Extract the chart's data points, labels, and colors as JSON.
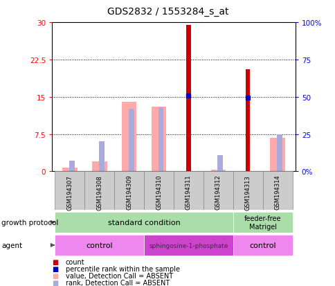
{
  "title": "GDS2832 / 1553284_s_at",
  "samples": [
    "GSM194307",
    "GSM194308",
    "GSM194309",
    "GSM194310",
    "GSM194311",
    "GSM194312",
    "GSM194313",
    "GSM194314"
  ],
  "count_values": [
    0,
    0,
    0,
    0,
    29.5,
    0,
    20.5,
    0
  ],
  "percentile_rank": [
    null,
    null,
    null,
    null,
    15.2,
    null,
    14.8,
    null
  ],
  "absent_value": [
    0.8,
    2.0,
    14.0,
    13.0,
    null,
    0.3,
    null,
    6.8
  ],
  "absent_rank_pct": [
    7.0,
    20.0,
    42.0,
    43.0,
    null,
    11.0,
    null,
    25.0
  ],
  "ylim_left": [
    0,
    30
  ],
  "ylim_right": [
    0,
    100
  ],
  "yticks_left": [
    0,
    7.5,
    15,
    22.5,
    30
  ],
  "yticks_right": [
    0,
    25,
    50,
    75,
    100
  ],
  "ytick_labels_left": [
    "0",
    "7.5",
    "15",
    "22.5",
    "30"
  ],
  "ytick_labels_right": [
    "0%",
    "25",
    "50",
    "75",
    "100%"
  ],
  "color_count": "#cc0000",
  "color_percentile": "#0000cc",
  "color_absent_value": "#ffaaaa",
  "color_absent_rank": "#aaaadd",
  "gp_color": "#aaddaa",
  "agent_light_color": "#ee88ee",
  "agent_dark_color": "#cc44cc",
  "sample_box_color": "#cccccc",
  "sample_box_edge": "#888888",
  "legend_items": [
    {
      "label": "count",
      "color": "#cc0000"
    },
    {
      "label": "percentile rank within the sample",
      "color": "#0000cc"
    },
    {
      "label": "value, Detection Call = ABSENT",
      "color": "#ffaaaa"
    },
    {
      "label": "rank, Detection Call = ABSENT",
      "color": "#aaaadd"
    }
  ]
}
